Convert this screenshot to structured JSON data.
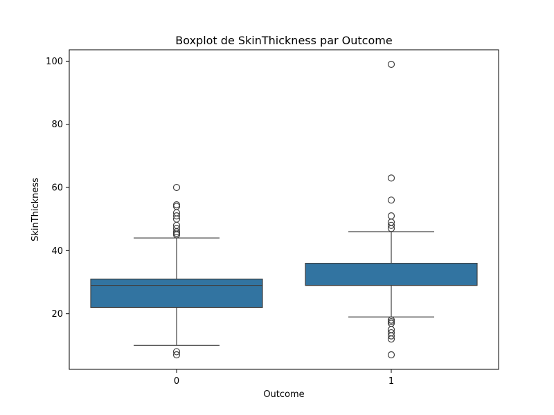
{
  "chart_data": {
    "type": "boxplot",
    "title": "Boxplot de SkinThickness par Outcome",
    "xlabel": "Outcome",
    "ylabel": "SkinThickness",
    "ylim": [
      2.4,
      103.6
    ],
    "yticks": [
      20,
      40,
      60,
      80,
      100
    ],
    "categories": [
      "0",
      "1"
    ],
    "box_color": "#3274a1",
    "line_color": "#3f3f3f",
    "series": [
      {
        "category": "0",
        "whisker_low": 10,
        "q1": 22,
        "median": 29,
        "q3": 31,
        "whisker_high": 44,
        "outliers": [
          8,
          7,
          45,
          45.5,
          46,
          47,
          48,
          50,
          51,
          52,
          54,
          54.5,
          60
        ]
      },
      {
        "category": "1",
        "whisker_low": 19,
        "q1": 29,
        "median": 29,
        "q3": 36,
        "whisker_high": 46,
        "outliers": [
          18,
          17.5,
          17,
          15,
          14,
          13,
          12,
          7,
          47,
          48,
          49,
          51,
          56,
          63,
          99
        ]
      }
    ]
  }
}
